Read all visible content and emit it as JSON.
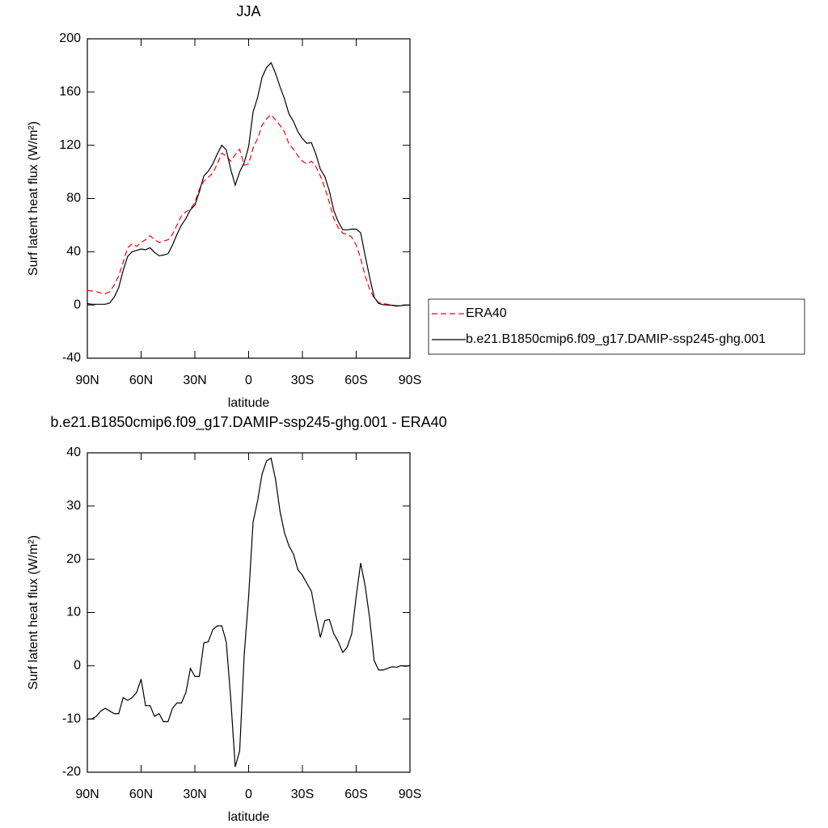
{
  "chart_data": [
    {
      "type": "line",
      "title": "JJA",
      "x_label": "latitude",
      "y_label": "Surf latent heat flux (W/m²)",
      "x": [
        90,
        87.5,
        85,
        82.5,
        80,
        77.5,
        75,
        72.5,
        70,
        67.5,
        65,
        62.5,
        60,
        57.5,
        55,
        52.5,
        50,
        47.5,
        45,
        42.5,
        40,
        37.5,
        35,
        32.5,
        30,
        27.5,
        25,
        22.5,
        20,
        17.5,
        15,
        12.5,
        10,
        7.5,
        5,
        2.5,
        0,
        -2.5,
        -5,
        -7.5,
        -10,
        -12.5,
        -15,
        -17.5,
        -20,
        -22.5,
        -25,
        -27.5,
        -30,
        -32.5,
        -35,
        -37.5,
        -40,
        -42.5,
        -45,
        -47.5,
        -50,
        -52.5,
        -55,
        -57.5,
        -60,
        -62.5,
        -65,
        -67.5,
        -70,
        -72.5,
        -75,
        -77.5,
        -80,
        -82.5,
        -85,
        -87.5,
        -90
      ],
      "series": [
        {
          "name": "ERA40",
          "color": "#ff0000",
          "dash": "dashed",
          "values": [
            11,
            10.5,
            10,
            9,
            8.5,
            10,
            15,
            22,
            32,
            43,
            46,
            44,
            47,
            49,
            52,
            49,
            47,
            48,
            49,
            53,
            60,
            67,
            70,
            72,
            77,
            87,
            93,
            96,
            99,
            106,
            114,
            112,
            108,
            113,
            117,
            105,
            106,
            118,
            125,
            135,
            140,
            143,
            139,
            135,
            130,
            121,
            117,
            112,
            108,
            106,
            108,
            104,
            97,
            88,
            77,
            65,
            58,
            54,
            53,
            51,
            45,
            35,
            22,
            12,
            5,
            2,
            1,
            0.5,
            0,
            -0.5,
            -0.5,
            0,
            0
          ]
        },
        {
          "name": "b.e21.B1850cmip6.f09_g17.DAMIP-ssp245-ghg.001",
          "color": "#000000",
          "dash": "solid",
          "values": [
            1,
            0.5,
            0.5,
            0.5,
            0.5,
            1.5,
            6,
            13,
            26,
            36.5,
            40,
            41,
            42,
            41.5,
            43,
            39.5,
            37,
            37.5,
            38.5,
            45,
            53,
            60,
            65,
            71.5,
            75,
            85,
            97,
            100.5,
            106,
            113.5,
            120,
            116.5,
            102,
            90,
            100,
            107,
            119,
            145,
            156,
            171,
            178.5,
            182,
            174,
            164,
            155,
            143.5,
            138,
            130,
            125,
            121.5,
            122,
            113.5,
            102,
            96.5,
            85.7,
            71,
            62.5,
            56.5,
            56.5,
            57,
            57,
            54.3,
            37,
            21,
            6,
            1.2,
            0.2,
            0,
            -0.2,
            -0.8,
            -0.5,
            -0.1,
            0
          ]
        }
      ],
      "xlim": [
        90,
        -90
      ],
      "xticks": [
        {
          "value": 90,
          "label": "90N"
        },
        {
          "value": 60,
          "label": "60N"
        },
        {
          "value": 30,
          "label": "30N"
        },
        0,
        {
          "value": -30,
          "label": "30S"
        },
        {
          "value": -60,
          "label": "60S"
        },
        {
          "value": -90,
          "label": "90S"
        }
      ],
      "ylim": [
        -40,
        200
      ],
      "yticks": [
        -40,
        0,
        40,
        80,
        120,
        160,
        200
      ],
      "legend": "right"
    },
    {
      "type": "line",
      "title": "b.e21.B1850cmip6.f09_g17.DAMIP-ssp245-ghg.001 - ERA40",
      "x_label": "latitude",
      "y_label": "Surf latent heat flux (W/m²)",
      "x": [
        90,
        87.5,
        85,
        82.5,
        80,
        77.5,
        75,
        72.5,
        70,
        67.5,
        65,
        62.5,
        60,
        57.5,
        55,
        52.5,
        50,
        47.5,
        45,
        42.5,
        40,
        37.5,
        35,
        32.5,
        30,
        27.5,
        25,
        22.5,
        20,
        17.5,
        15,
        12.5,
        10,
        7.5,
        5,
        2.5,
        0,
        -2.5,
        -5,
        -7.5,
        -10,
        -12.5,
        -15,
        -17.5,
        -20,
        -22.5,
        -25,
        -27.5,
        -30,
        -32.5,
        -35,
        -37.5,
        -40,
        -42.5,
        -45,
        -47.5,
        -50,
        -52.5,
        -55,
        -57.5,
        -60,
        -62.5,
        -65,
        -67.5,
        -70,
        -72.5,
        -75,
        -77.5,
        -80,
        -82.5,
        -85,
        -87.5,
        -90
      ],
      "series": [
        {
          "color": "#000000",
          "dash": "solid",
          "values": [
            -10,
            -10,
            -9.5,
            -8.5,
            -8,
            -8.5,
            -9,
            -9,
            -6,
            -6.5,
            -6,
            -5,
            -2.5,
            -7.5,
            -7.5,
            -9.5,
            -9,
            -10.5,
            -10.5,
            -8,
            -7,
            -7,
            -5,
            -0.5,
            -2,
            -2,
            4.3,
            4.5,
            6.8,
            7.5,
            7.5,
            4.5,
            -6,
            -19,
            -16,
            2,
            13,
            27,
            31,
            36,
            38.5,
            39,
            35,
            29,
            25,
            22.5,
            21,
            18,
            17,
            15.5,
            14,
            9.5,
            5.3,
            8.5,
            8.7,
            6,
            4.5,
            2.5,
            3.5,
            6,
            13,
            19.3,
            15,
            9,
            1,
            -0.8,
            -0.8,
            -0.5,
            -0.2,
            -0.3,
            0,
            -0.1,
            0
          ]
        }
      ],
      "xlim": [
        90,
        -90
      ],
      "xticks": [
        {
          "value": 90,
          "label": "90N"
        },
        {
          "value": 60,
          "label": "60N"
        },
        {
          "value": 30,
          "label": "30N"
        },
        0,
        {
          "value": -30,
          "label": "30S"
        },
        {
          "value": -60,
          "label": "60S"
        },
        {
          "value": -90,
          "label": "90S"
        }
      ],
      "ylim": [
        -20,
        40
      ],
      "yticks": [
        -20,
        -10,
        0,
        10,
        20,
        30,
        40
      ]
    }
  ]
}
